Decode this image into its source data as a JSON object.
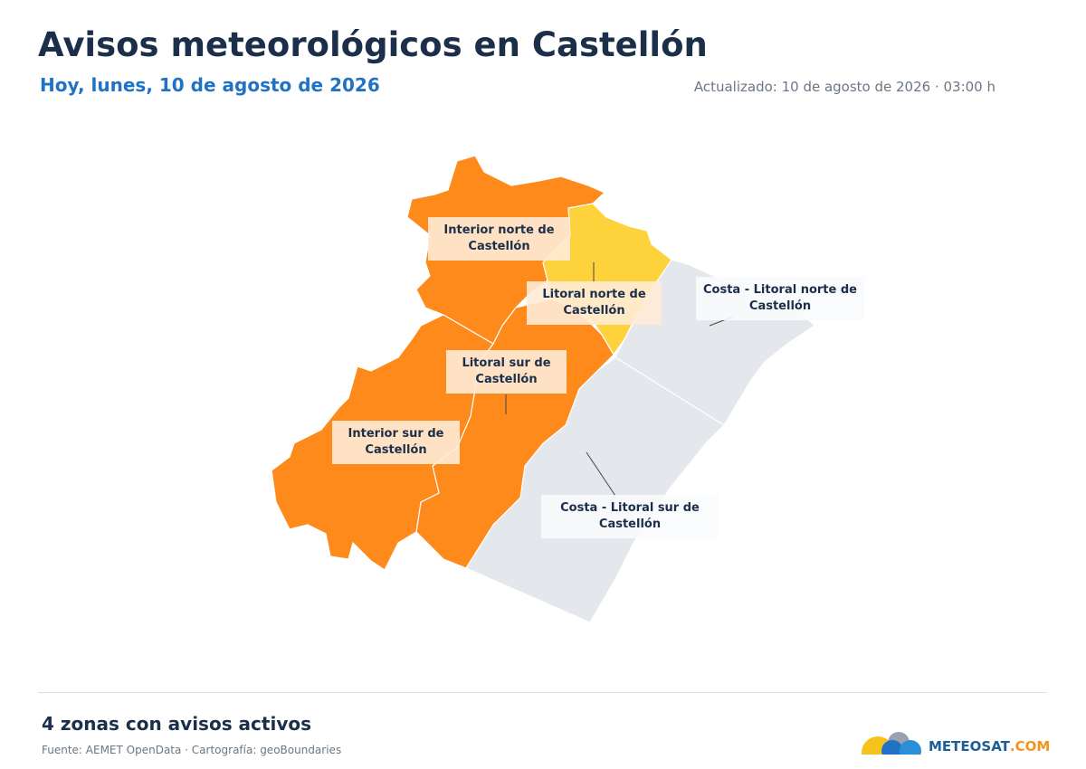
{
  "header": {
    "title": "Avisos meteorológicos en Castellón",
    "subtitle": "Hoy, lunes, 10 de agosto de 2026",
    "updated": "Actualizado: 10 de agosto de 2026 · 03:00 h"
  },
  "zones": [
    {
      "label": "Interior norte de Castellón"
    },
    {
      "label": "Litoral norte de Castellón"
    },
    {
      "label": "Costa - Litoral norte de Castellón"
    },
    {
      "label": "Litoral sur de Castellón"
    },
    {
      "label": "Interior sur de Castellón"
    },
    {
      "label": "Costa - Litoral sur de Castellón"
    }
  ],
  "footer": {
    "summary": "4 zonas con avisos activos",
    "source": "Fuente: AEMET OpenData · Cartografía: geoBoundaries",
    "logo": {
      "name": "METEOSAT",
      "domain": ".COM"
    }
  }
}
